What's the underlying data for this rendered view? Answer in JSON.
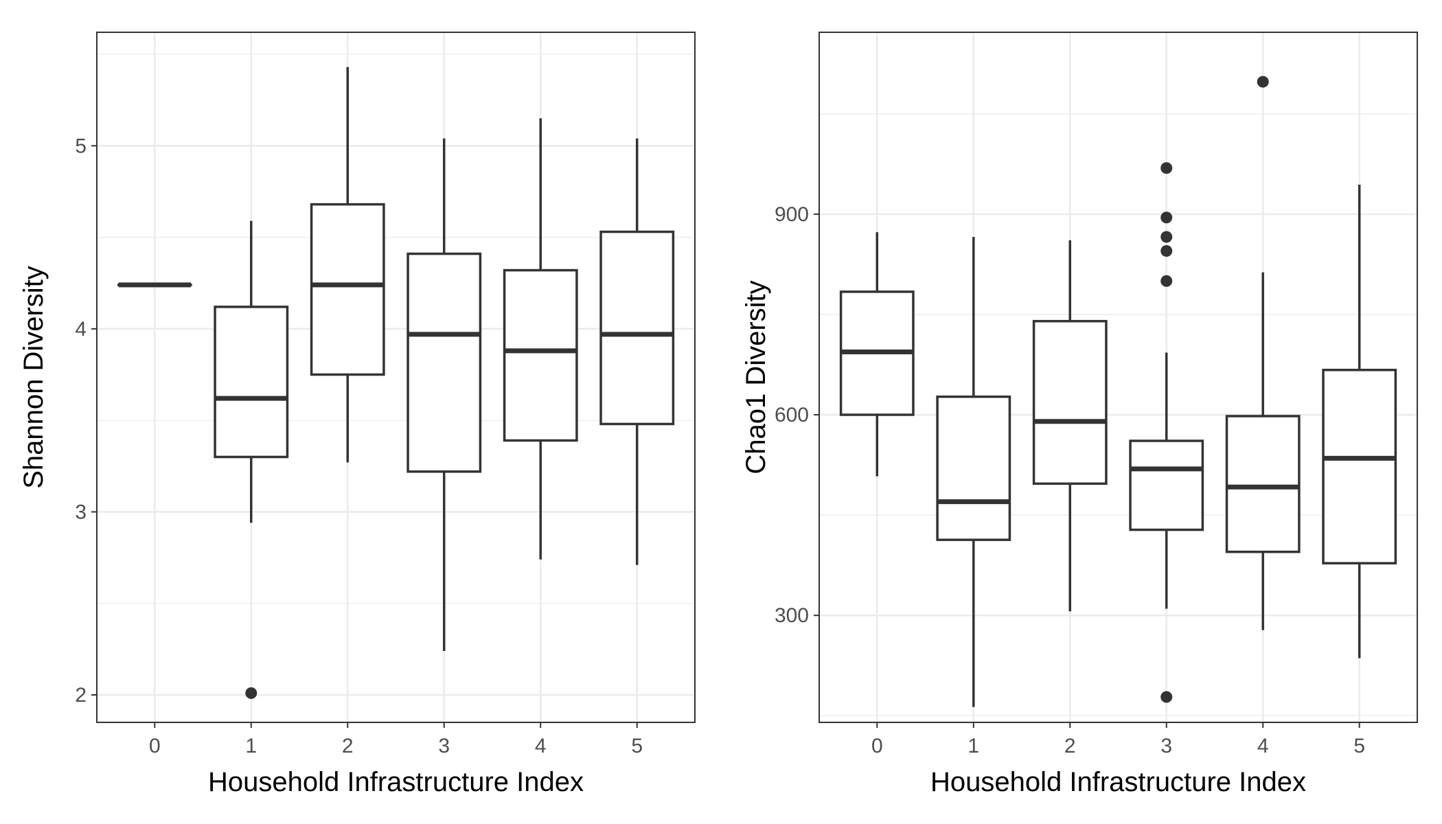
{
  "chart_data": [
    {
      "type": "box",
      "xlabel": "Household Infrastructure Index",
      "ylabel": "Shannon Diversity",
      "categories": [
        "0",
        "1",
        "2",
        "3",
        "4",
        "5"
      ],
      "ylim": [
        1.85,
        5.62
      ],
      "yticks": [
        2,
        3,
        4,
        5
      ],
      "grid": true,
      "boxes": [
        {
          "category": "0",
          "min": 4.24,
          "q1": 4.24,
          "median": 4.24,
          "q3": 4.24,
          "max": 4.24,
          "outliers": []
        },
        {
          "category": "1",
          "min": 2.94,
          "q1": 3.3,
          "median": 3.62,
          "q3": 4.12,
          "max": 4.59,
          "outliers": [
            2.01
          ]
        },
        {
          "category": "2",
          "min": 3.27,
          "q1": 3.75,
          "median": 4.24,
          "q3": 4.68,
          "max": 5.43,
          "outliers": []
        },
        {
          "category": "3",
          "min": 2.24,
          "q1": 3.22,
          "median": 3.97,
          "q3": 4.41,
          "max": 5.04,
          "outliers": []
        },
        {
          "category": "4",
          "min": 2.74,
          "q1": 3.39,
          "median": 3.88,
          "q3": 4.32,
          "max": 5.15,
          "outliers": []
        },
        {
          "category": "5",
          "min": 2.71,
          "q1": 3.48,
          "median": 3.97,
          "q3": 4.53,
          "max": 5.04,
          "outliers": []
        }
      ]
    },
    {
      "type": "box",
      "xlabel": "Household Infrastructure Index",
      "ylabel": "Chao1 Diversity",
      "categories": [
        "0",
        "1",
        "2",
        "3",
        "4",
        "5"
      ],
      "ylim": [
        140,
        1172
      ],
      "yticks": [
        300,
        600,
        900
      ],
      "grid": true,
      "boxes": [
        {
          "category": "0",
          "min": 508,
          "q1": 600,
          "median": 694,
          "q3": 784,
          "max": 873,
          "outliers": []
        },
        {
          "category": "1",
          "min": 163,
          "q1": 413,
          "median": 470,
          "q3": 627,
          "max": 866,
          "outliers": []
        },
        {
          "category": "2",
          "min": 306,
          "q1": 497,
          "median": 590,
          "q3": 740,
          "max": 861,
          "outliers": []
        },
        {
          "category": "3",
          "min": 310,
          "q1": 428,
          "median": 519,
          "q3": 561,
          "max": 693,
          "outliers": [
            969,
            895,
            866,
            845,
            800,
            178
          ]
        },
        {
          "category": "4",
          "min": 278,
          "q1": 395,
          "median": 492,
          "q3": 598,
          "max": 813,
          "outliers": [
            1098
          ]
        },
        {
          "category": "5",
          "min": 236,
          "q1": 378,
          "median": 535,
          "q3": 667,
          "max": 944,
          "outliers": []
        }
      ]
    }
  ]
}
